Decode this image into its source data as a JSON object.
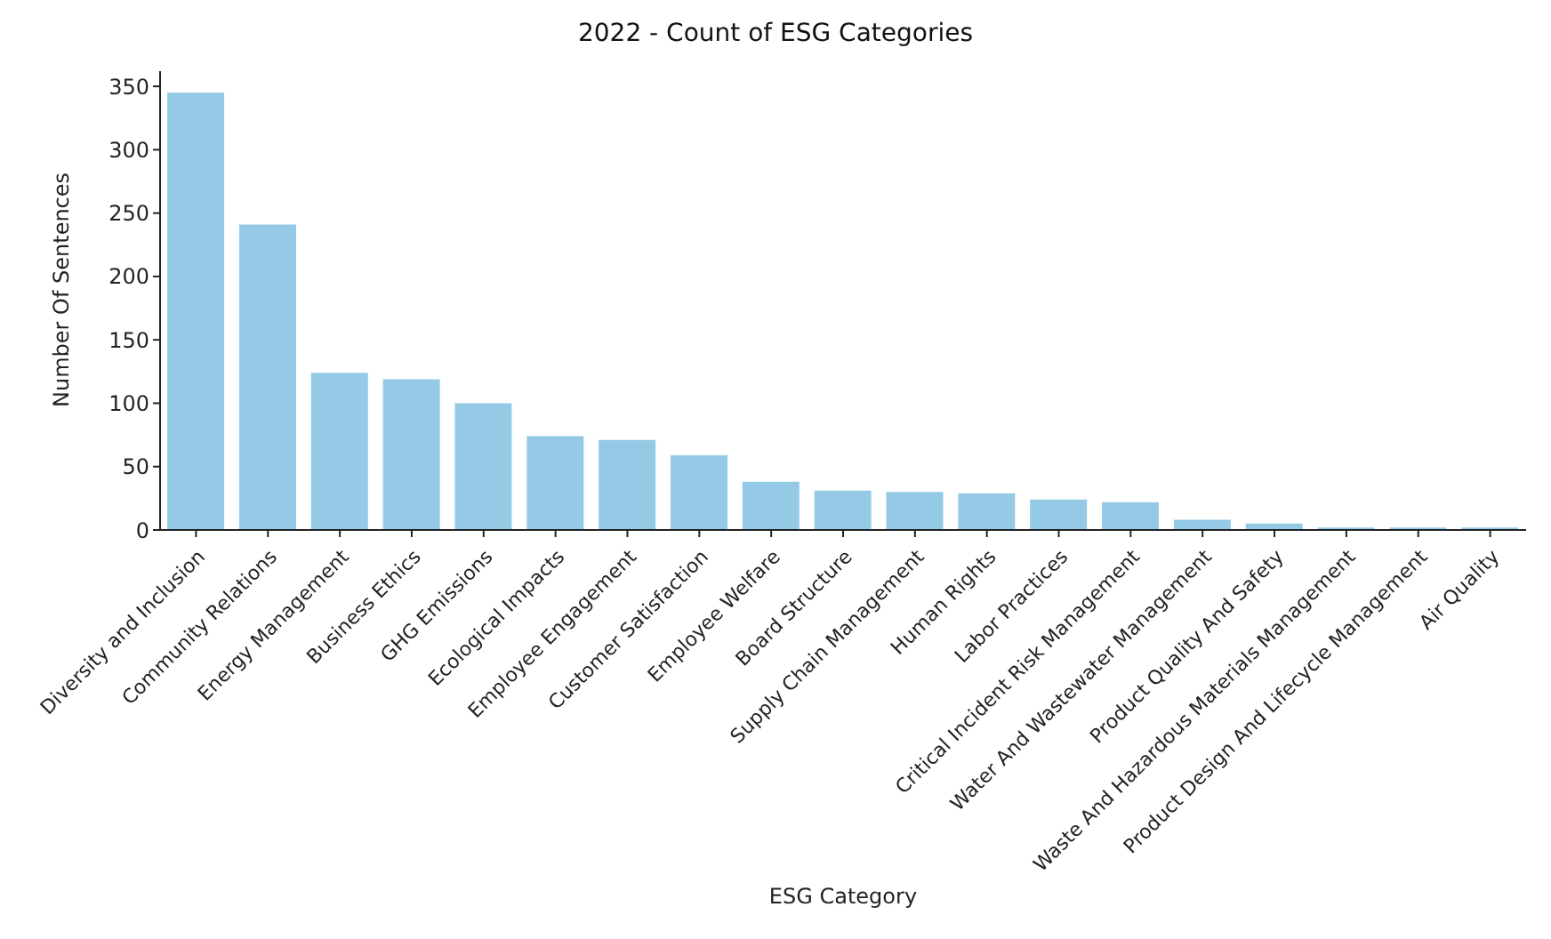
{
  "chart_data": {
    "type": "bar",
    "title": "2022 - Count of ESG Categories",
    "xlabel": "ESG Category",
    "ylabel": "Number Of Sentences",
    "categories": [
      "Diversity and Inclusion",
      "Community Relations",
      "Energy Management",
      "Business Ethics",
      "GHG Emissions",
      "Ecological Impacts",
      "Employee Engagement",
      "Customer Satisfaction",
      "Employee Welfare",
      "Board Structure",
      "Supply Chain Management",
      "Human Rights",
      "Labor Practices",
      "Critical Incident Risk Management",
      "Water And Wastewater Management",
      "Product Quality And Safety",
      "Waste And Hazardous Materials Management",
      "Product Design And Lifecycle Management",
      "Air Quality"
    ],
    "values": [
      345,
      241,
      124,
      119,
      100,
      74,
      71,
      59,
      38,
      31,
      30,
      29,
      24,
      22,
      8,
      5,
      2,
      2,
      2
    ],
    "color": "#95cae7",
    "ylim": [
      0,
      362
    ],
    "yticks": [
      0,
      50,
      100,
      150,
      200,
      250,
      300,
      350
    ],
    "grid": false,
    "legend": false
  }
}
